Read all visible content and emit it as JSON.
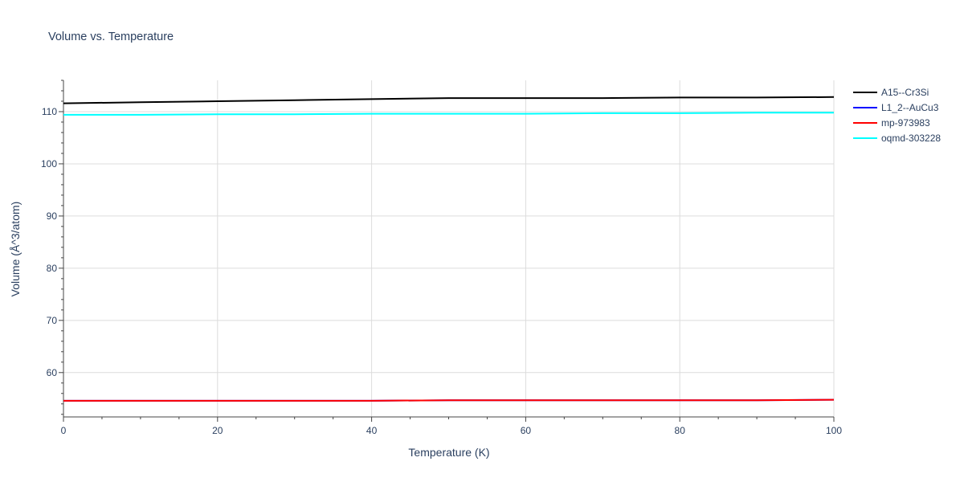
{
  "chart_data": {
    "type": "line",
    "title": "Volume vs. Temperature",
    "xlabel": "Temperature (K)",
    "ylabel": "Volume (Å^3/atom)",
    "xlim": [
      0,
      100
    ],
    "ylim": [
      51.5,
      116
    ],
    "x_ticks": [
      0,
      20,
      40,
      60,
      80,
      100
    ],
    "y_ticks": [
      60,
      70,
      80,
      90,
      100,
      110
    ],
    "grid": true,
    "legend_position": "top-right",
    "series": [
      {
        "name": "A15--Cr3Si",
        "color": "#000000",
        "x": [
          0,
          10,
          20,
          30,
          40,
          50,
          60,
          70,
          80,
          90,
          100
        ],
        "y": [
          111.6,
          111.8,
          112.0,
          112.2,
          112.4,
          112.6,
          112.6,
          112.6,
          112.7,
          112.7,
          112.8
        ]
      },
      {
        "name": "L1_2--AuCu3",
        "color": "#0000ff",
        "x": [
          0,
          10,
          20,
          30,
          40,
          50,
          60,
          70,
          80,
          90,
          100
        ],
        "y": [
          54.6,
          54.6,
          54.6,
          54.6,
          54.6,
          54.7,
          54.7,
          54.7,
          54.7,
          54.7,
          54.8
        ]
      },
      {
        "name": "mp-973983",
        "color": "#ff0000",
        "x": [
          0,
          10,
          20,
          30,
          40,
          50,
          60,
          70,
          80,
          90,
          100
        ],
        "y": [
          54.6,
          54.6,
          54.6,
          54.6,
          54.6,
          54.7,
          54.7,
          54.7,
          54.7,
          54.7,
          54.8
        ]
      },
      {
        "name": "oqmd-303228",
        "color": "#00ffff",
        "x": [
          0,
          10,
          20,
          30,
          40,
          50,
          60,
          70,
          80,
          90,
          100
        ],
        "y": [
          109.4,
          109.4,
          109.5,
          109.5,
          109.6,
          109.6,
          109.6,
          109.7,
          109.7,
          109.8,
          109.8
        ]
      }
    ]
  }
}
